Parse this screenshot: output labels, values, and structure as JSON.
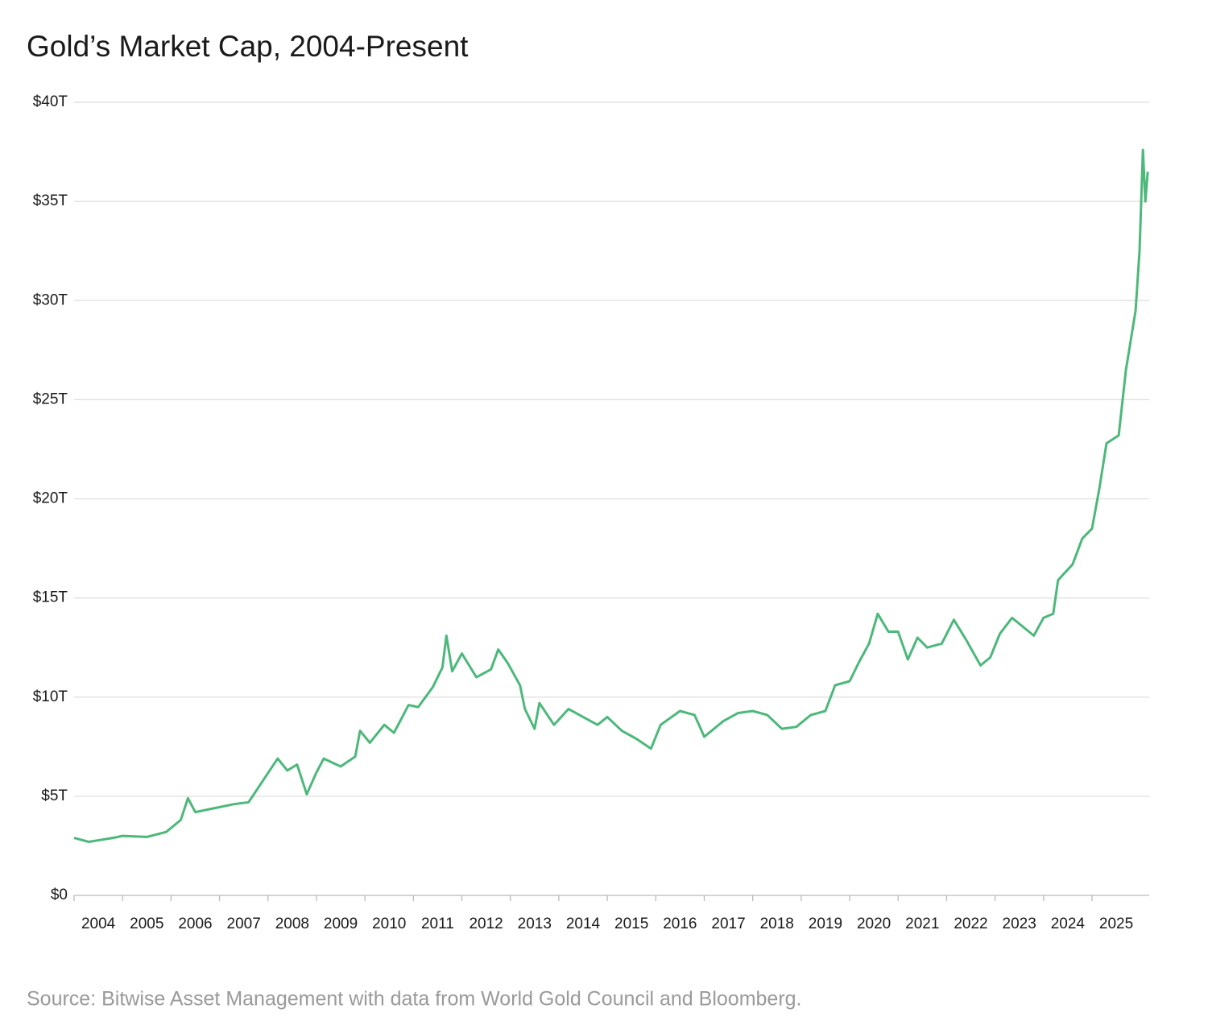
{
  "chart_data": {
    "type": "line",
    "title": "Gold’s Market Cap, 2004-Present",
    "source": "Source: Bitwise Asset Management with data from World Gold Council and Bloomberg.",
    "color": "#4cb87a",
    "x": [
      2004.0,
      2004.3,
      2004.8,
      2005.0,
      2005.5,
      2005.9,
      2006.2,
      2006.35,
      2006.5,
      2006.9,
      2007.3,
      2007.6,
      2007.9,
      2008.2,
      2008.4,
      2008.6,
      2008.8,
      2009.0,
      2009.15,
      2009.5,
      2009.8,
      2009.9,
      2010.1,
      2010.4,
      2010.6,
      2010.9,
      2011.1,
      2011.4,
      2011.6,
      2011.68,
      2011.8,
      2012.0,
      2012.3,
      2012.6,
      2012.75,
      2012.95,
      2013.2,
      2013.3,
      2013.5,
      2013.6,
      2013.9,
      2014.2,
      2014.5,
      2014.8,
      2015.0,
      2015.3,
      2015.6,
      2015.9,
      2016.1,
      2016.5,
      2016.8,
      2017.0,
      2017.4,
      2017.7,
      2018.0,
      2018.3,
      2018.6,
      2018.9,
      2019.2,
      2019.5,
      2019.7,
      2020.0,
      2020.2,
      2020.4,
      2020.58,
      2020.8,
      2021.0,
      2021.2,
      2021.4,
      2021.6,
      2021.9,
      2022.15,
      2022.4,
      2022.7,
      2022.9,
      2023.1,
      2023.35,
      2023.6,
      2023.8,
      2024.0,
      2024.2,
      2024.3,
      2024.6,
      2024.8,
      2025.0,
      2025.15,
      2025.3,
      2025.55,
      2025.7,
      2025.9,
      2025.98,
      2026.05,
      2026.1,
      2026.15
    ],
    "values": [
      2.9,
      2.7,
      2.9,
      3.0,
      2.95,
      3.2,
      3.8,
      4.9,
      4.2,
      4.4,
      4.6,
      4.7,
      5.8,
      6.9,
      6.3,
      6.6,
      5.1,
      6.2,
      6.9,
      6.5,
      7.0,
      8.3,
      7.7,
      8.6,
      8.2,
      9.6,
      9.5,
      10.5,
      11.5,
      13.1,
      11.3,
      12.2,
      11.0,
      11.4,
      12.4,
      11.7,
      10.6,
      9.4,
      8.4,
      9.7,
      8.6,
      9.4,
      9.0,
      8.6,
      9.0,
      8.3,
      7.9,
      7.4,
      8.6,
      9.3,
      9.1,
      8.0,
      8.8,
      9.2,
      9.3,
      9.1,
      8.4,
      8.5,
      9.1,
      9.3,
      10.6,
      10.8,
      11.8,
      12.7,
      14.2,
      13.3,
      13.3,
      11.9,
      13.0,
      12.5,
      12.7,
      13.9,
      12.9,
      11.6,
      12.0,
      13.2,
      14.0,
      13.5,
      13.1,
      14.0,
      14.2,
      15.9,
      16.7,
      18.0,
      18.5,
      20.5,
      22.8,
      23.2,
      26.5,
      29.5,
      32.5,
      37.6,
      35.0,
      36.5
    ],
    "xlim": [
      2004,
      2026.18
    ],
    "xticks": [
      {
        "value": 2004,
        "label": "2004"
      },
      {
        "value": 2005,
        "label": "2005"
      },
      {
        "value": 2006,
        "label": "2006"
      },
      {
        "value": 2007,
        "label": "2007"
      },
      {
        "value": 2008,
        "label": "2008"
      },
      {
        "value": 2009,
        "label": "2009"
      },
      {
        "value": 2010,
        "label": "2010"
      },
      {
        "value": 2011,
        "label": "2011"
      },
      {
        "value": 2012,
        "label": "2012"
      },
      {
        "value": 2013,
        "label": "2013"
      },
      {
        "value": 2014,
        "label": "2014"
      },
      {
        "value": 2015,
        "label": "2015"
      },
      {
        "value": 2016,
        "label": "2016"
      },
      {
        "value": 2017,
        "label": "2017"
      },
      {
        "value": 2018,
        "label": "2018"
      },
      {
        "value": 2019,
        "label": "2019"
      },
      {
        "value": 2020,
        "label": "2020"
      },
      {
        "value": 2021,
        "label": "2021"
      },
      {
        "value": 2022,
        "label": "2022"
      },
      {
        "value": 2023,
        "label": "2023"
      },
      {
        "value": 2024,
        "label": "2024"
      },
      {
        "value": 2025,
        "label": "2025"
      }
    ],
    "ylim": [
      0,
      40
    ],
    "yticks": [
      {
        "value": 0,
        "label": "$0"
      },
      {
        "value": 5,
        "label": "$5T"
      },
      {
        "value": 10,
        "label": "$10T"
      },
      {
        "value": 15,
        "label": "$15T"
      },
      {
        "value": 20,
        "label": "$20T"
      },
      {
        "value": 25,
        "label": "$25T"
      },
      {
        "value": 30,
        "label": "$30T"
      },
      {
        "value": 35,
        "label": "$35T"
      },
      {
        "value": 40,
        "label": "$40T"
      }
    ],
    "grid": true
  }
}
